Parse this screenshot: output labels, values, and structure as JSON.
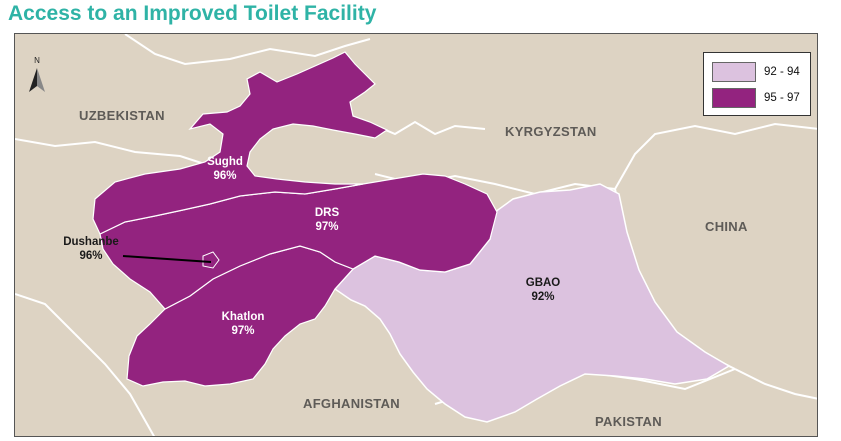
{
  "title": "Access to an Improved Toilet Facility",
  "colors": {
    "background": "#ddd3c3",
    "border_white": "#ffffff",
    "high": "#93237f",
    "low": "#dcc2df",
    "title": "#2fb3a6"
  },
  "north_arrow": {
    "label": "N",
    "icon": "north-arrow-icon"
  },
  "countries": [
    {
      "id": "uzbekistan",
      "label": "UZBEKISTAN"
    },
    {
      "id": "kyrgyzstan",
      "label": "KYRGYZSTAN"
    },
    {
      "id": "china",
      "label": "CHINA"
    },
    {
      "id": "afghanistan",
      "label": "AFGHANISTAN"
    },
    {
      "id": "pakistan",
      "label": "PAKISTAN"
    }
  ],
  "regions": [
    {
      "id": "sughd",
      "name": "Sughd",
      "value": "96%",
      "category": "95 - 97"
    },
    {
      "id": "drs",
      "name": "DRS",
      "value": "97%",
      "category": "95 - 97"
    },
    {
      "id": "dushanbe",
      "name": "Dushanbe",
      "value": "96%",
      "category": "95 - 97"
    },
    {
      "id": "khatlon",
      "name": "Khatlon",
      "value": "97%",
      "category": "95 - 97"
    },
    {
      "id": "gbao",
      "name": "GBAO",
      "value": "92%",
      "category": "92 - 94"
    }
  ],
  "legend": {
    "items": [
      {
        "label": "92 - 94",
        "color": "#dcc2df"
      },
      {
        "label": "95 - 97",
        "color": "#93237f"
      }
    ]
  }
}
